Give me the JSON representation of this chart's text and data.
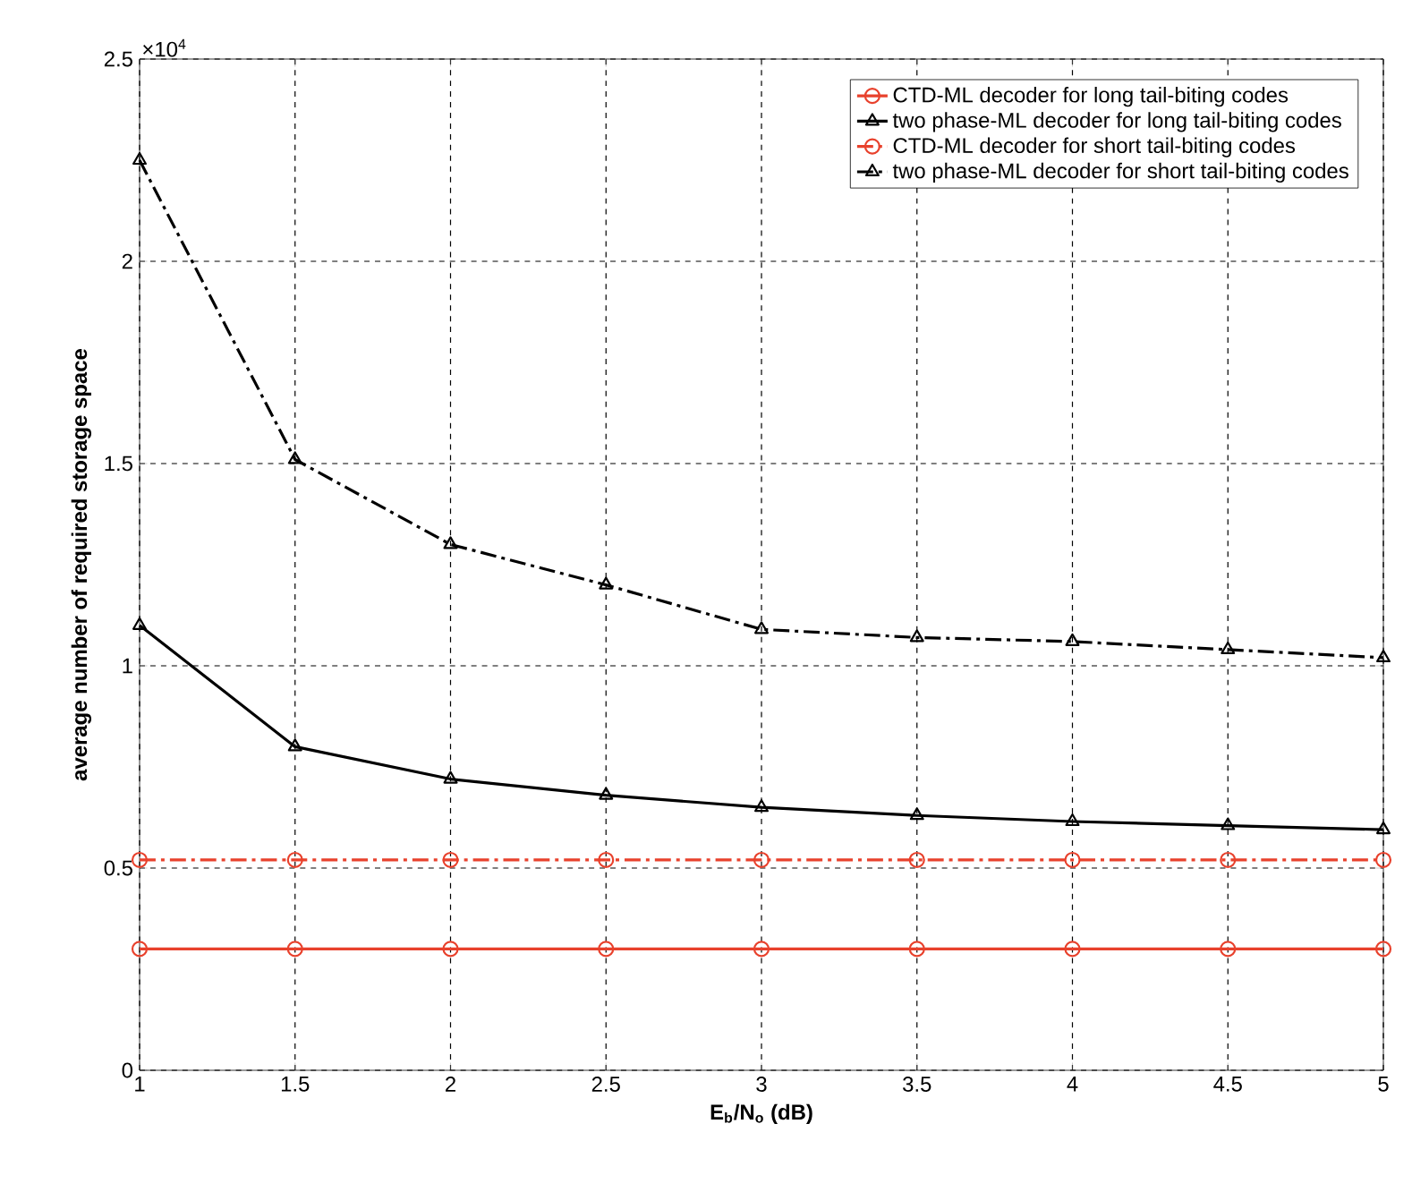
{
  "chart_data": {
    "type": "line",
    "xlabel": "E$_{b}$/N$_{o}$ (dB)",
    "ylabel": "average number of required storage space",
    "annotations": [
      "×10$^{4}$"
    ],
    "x": [
      1,
      1.5,
      2,
      2.5,
      3,
      3.5,
      4,
      4.5,
      5
    ],
    "series": [
      {
        "name": "CTD-ML decoder for long tail-biting codes",
        "color": "#e8412c",
        "marker": "circle",
        "line_style": "solid",
        "values": [
          0.3,
          0.3,
          0.3,
          0.3,
          0.3,
          0.3,
          0.3,
          0.3,
          0.3
        ]
      },
      {
        "name": "two phase-ML decoder for long tail-biting codes",
        "color": "#000000",
        "marker": "triangle",
        "line_style": "solid",
        "values": [
          1.1,
          0.8,
          0.72,
          0.68,
          0.65,
          0.63,
          0.615,
          0.605,
          0.595
        ]
      },
      {
        "name": "CTD-ML decoder for short tail-biting codes",
        "color": "#e8412c",
        "marker": "circle",
        "line_style": "dashdot",
        "values": [
          0.52,
          0.52,
          0.52,
          0.52,
          0.52,
          0.52,
          0.52,
          0.52,
          0.52
        ]
      },
      {
        "name": "two phase-ML decoder for short tail-biting codes",
        "color": "#000000",
        "marker": "triangle",
        "line_style": "dashdot",
        "values": [
          2.25,
          1.51,
          1.3,
          1.2,
          1.09,
          1.07,
          1.06,
          1.04,
          1.02
        ]
      }
    ],
    "xlim": [
      1,
      5
    ],
    "ylim": [
      0,
      2.5
    ],
    "xticks": [
      1,
      1.5,
      2,
      2.5,
      3,
      3.5,
      4,
      4.5,
      5
    ],
    "yticks": [
      0,
      0.5,
      1,
      1.5,
      2,
      2.5
    ],
    "grid": true,
    "legend": "top right"
  }
}
